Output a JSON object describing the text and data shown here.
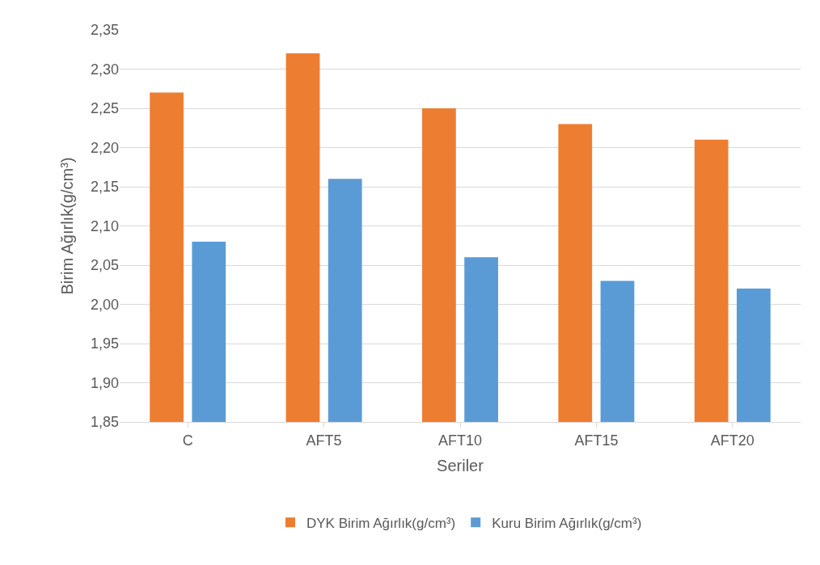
{
  "chart_data": {
    "type": "bar",
    "xlabel": "Seriler",
    "ylabel": "Birim Ağırlık(g/cm³)",
    "categories": [
      "C",
      "AFT5",
      "AFT10",
      "AFT15",
      "AFT20"
    ],
    "series": [
      {
        "name": "DYK Birim Ağırlık(g/cm³)",
        "color": "#ed7d31",
        "values": [
          2.27,
          2.32,
          2.25,
          2.23,
          2.21
        ]
      },
      {
        "name": "Kuru Birim Ağırlık(g/cm³)",
        "color": "#5b9bd5",
        "values": [
          2.08,
          2.16,
          2.06,
          2.03,
          2.02
        ]
      }
    ],
    "ylim": [
      1.85,
      2.35
    ],
    "yticks": [
      {
        "value": 1.85,
        "label": "1,85"
      },
      {
        "value": 1.9,
        "label": "1,90"
      },
      {
        "value": 1.95,
        "label": "1,95"
      },
      {
        "value": 2.0,
        "label": "2,00"
      },
      {
        "value": 2.05,
        "label": "2,05"
      },
      {
        "value": 2.1,
        "label": "2,10"
      },
      {
        "value": 2.15,
        "label": "2,15"
      },
      {
        "value": 2.2,
        "label": "2,20"
      },
      {
        "value": 2.25,
        "label": "2,25"
      },
      {
        "value": 2.3,
        "label": "2,30"
      },
      {
        "value": 2.35,
        "label": "2,35"
      }
    ],
    "grid": "y",
    "legend": "bottom"
  }
}
